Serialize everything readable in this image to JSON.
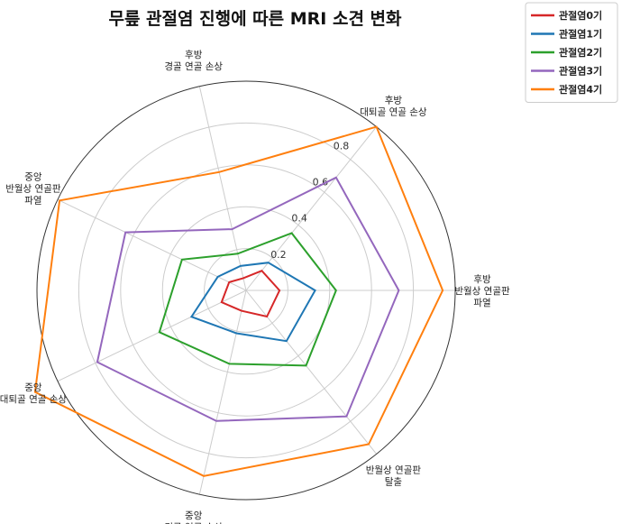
{
  "chart_data": {
    "type": "radar",
    "title": "무릎 관절염 진행에 따른 MRI 소견 변화",
    "axes": [
      [
        "후방",
        "반월상 연골판",
        "파열"
      ],
      [
        "후방",
        "대퇴골 연골 손상"
      ],
      [
        "후방",
        "경골 연골 손상"
      ],
      [
        "중앙",
        "반월상 연골판",
        "파열"
      ],
      [
        "중앙",
        "대퇴골 연골 손상"
      ],
      [
        "중앙",
        "경골 연골 손상"
      ],
      [
        "반월상 연골판",
        "탈출"
      ]
    ],
    "rlim": [
      0,
      1.0
    ],
    "radial_ticks": [
      0.2,
      0.4,
      0.6,
      0.8
    ],
    "radial_tick_labels": [
      "0.2",
      "0.4",
      "0.6",
      "0.8"
    ],
    "grid": true,
    "legend_position": "top-right",
    "series": [
      {
        "name": "관절염0기",
        "color": "#d62728",
        "values": [
          0.16,
          0.12,
          0.06,
          0.09,
          0.13,
          0.1,
          0.16
        ]
      },
      {
        "name": "관절염1기",
        "color": "#1f77b4",
        "values": [
          0.33,
          0.17,
          0.12,
          0.15,
          0.29,
          0.21,
          0.31
        ]
      },
      {
        "name": "관절염2기",
        "color": "#2ca02c",
        "values": [
          0.43,
          0.35,
          0.18,
          0.34,
          0.46,
          0.36,
          0.46
        ]
      },
      {
        "name": "관절염3기",
        "color": "#9467bd",
        "values": [
          0.73,
          0.69,
          0.3,
          0.64,
          0.79,
          0.64,
          0.77
        ]
      },
      {
        "name": "관절염4기",
        "color": "#ff7f0e",
        "values": [
          0.94,
          1.0,
          0.58,
          0.99,
          1.12,
          0.91,
          0.94
        ]
      }
    ]
  }
}
